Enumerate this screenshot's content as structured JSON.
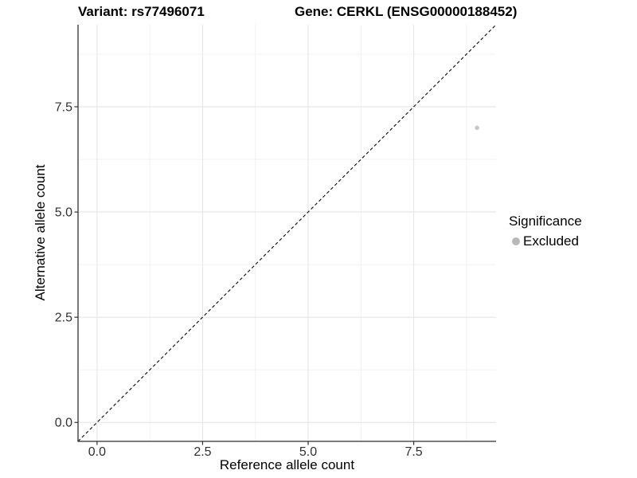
{
  "chart_data": {
    "type": "scatter",
    "title_left": "Variant: rs77496071",
    "title_right": "Gene: CERKL (ENSG00000188452)",
    "xlabel": "Reference allele count",
    "ylabel": "Alternative allele count",
    "xlim": [
      -0.45,
      9.45
    ],
    "ylim": [
      -0.45,
      9.45
    ],
    "x_ticks": [
      {
        "value": 0.0,
        "label": "0.0"
      },
      {
        "value": 2.5,
        "label": "2.5"
      },
      {
        "value": 5.0,
        "label": "5.0"
      },
      {
        "value": 7.5,
        "label": "7.5"
      }
    ],
    "y_ticks": [
      {
        "value": 0.0,
        "label": "0.0"
      },
      {
        "value": 2.5,
        "label": "2.5"
      },
      {
        "value": 5.0,
        "label": "5.0"
      },
      {
        "value": 7.5,
        "label": "7.5"
      }
    ],
    "x_minor_ticks": [
      1.25,
      3.75,
      6.25,
      8.75
    ],
    "y_minor_ticks": [
      1.25,
      3.75,
      6.25,
      8.75
    ],
    "grid": {
      "show_major": true,
      "show_minor": true,
      "major_color": "#E6E6E6",
      "minor_color": "#F0F0F0"
    },
    "reference_line": {
      "kind": "identity",
      "slope": 1,
      "intercept": 0,
      "linetype": "dashed",
      "color": "#1A1A1A"
    },
    "series": [
      {
        "name": "Excluded",
        "color": "#C6C6C6",
        "point_radius": 2.8,
        "points": [
          {
            "x": 9,
            "y": 7
          }
        ]
      }
    ],
    "legend": {
      "title": "Significance",
      "position": "right",
      "items": [
        {
          "label": "Excluded",
          "marker": "circle",
          "color": "#B9B9B9"
        }
      ]
    },
    "axis_style": {
      "line_color": "#2F2F2F",
      "tick_color": "#2F2F2F",
      "tick_label_color": "#303030",
      "tick_label_size": 16
    }
  }
}
